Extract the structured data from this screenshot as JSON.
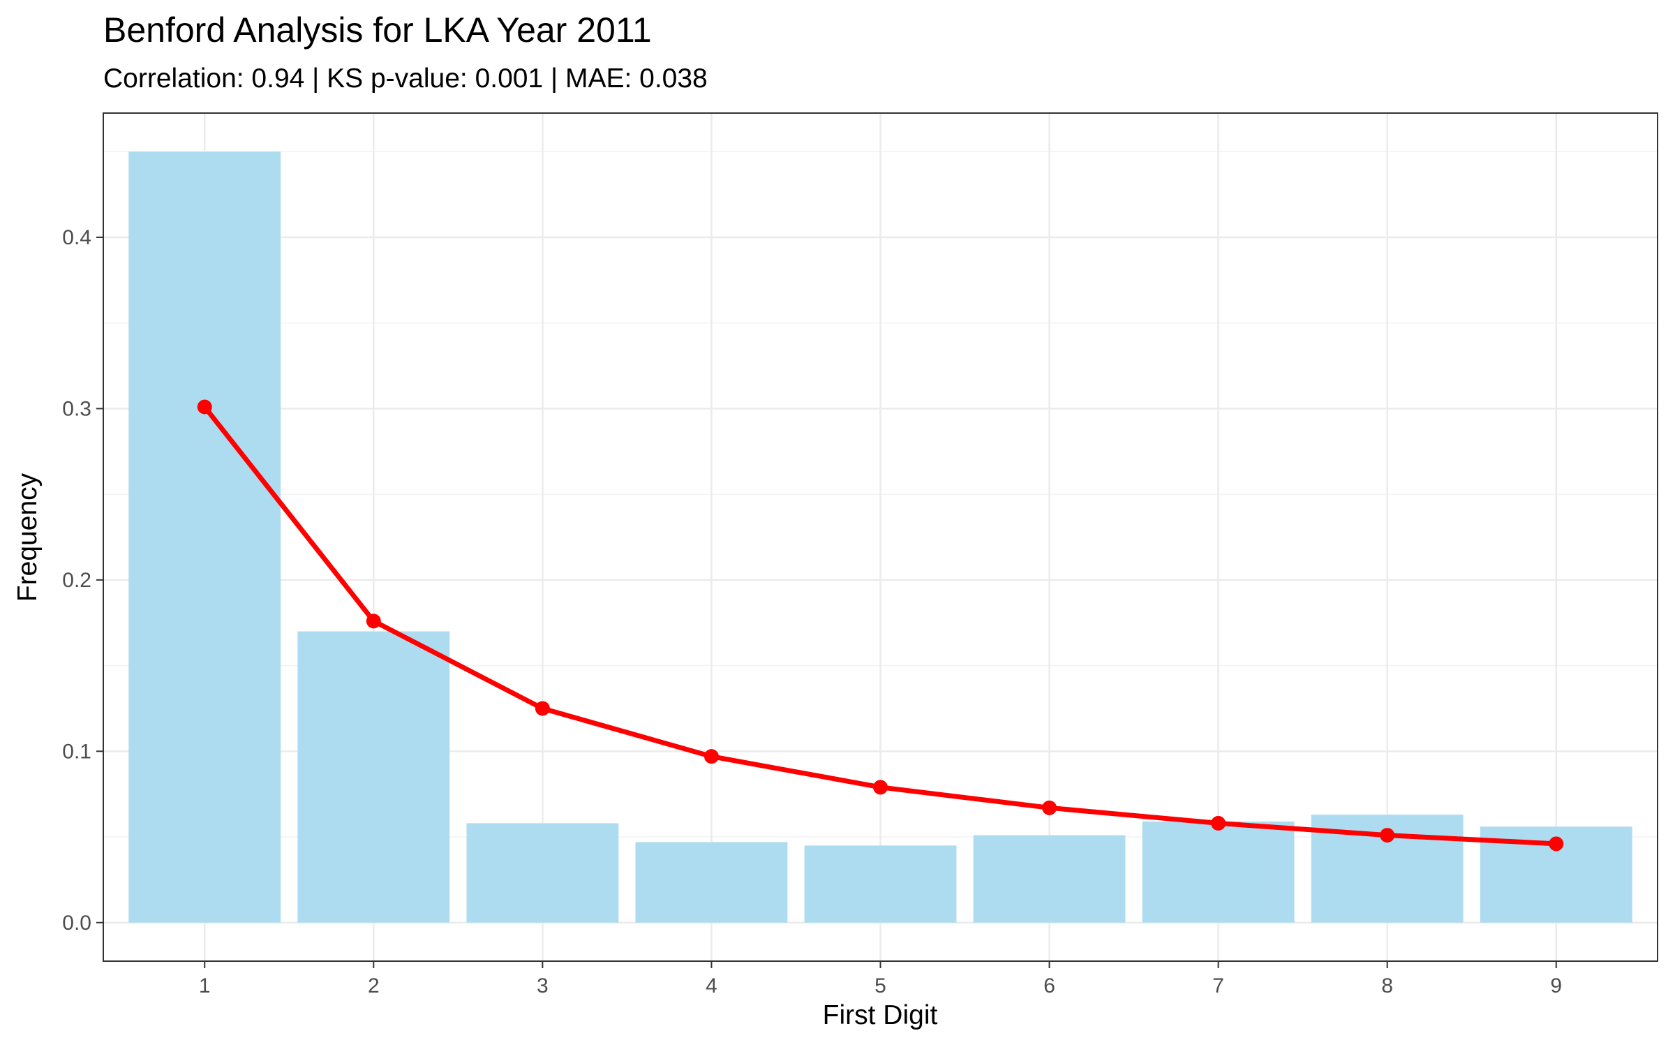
{
  "chart_data": {
    "type": "bar",
    "title": "Benford Analysis for LKA Year 2011",
    "subtitle": "Correlation: 0.94 | KS p-value: 0.001 | MAE: 0.038",
    "xlabel": "First Digit",
    "ylabel": "Frequency",
    "categories": [
      "1",
      "2",
      "3",
      "4",
      "5",
      "6",
      "7",
      "8",
      "9"
    ],
    "x_ticks": [
      "1",
      "2",
      "3",
      "4",
      "5",
      "6",
      "7",
      "8",
      "9"
    ],
    "y_ticks": [
      "0.0",
      "0.1",
      "0.2",
      "0.3",
      "0.4"
    ],
    "y_tick_values": [
      0.0,
      0.1,
      0.2,
      0.3,
      0.4
    ],
    "ylim": [
      -0.0225,
      0.4725
    ],
    "xlim": [
      0.4,
      9.6
    ],
    "grid": true,
    "series": [
      {
        "kind": "bar",
        "values": [
          0.45,
          0.17,
          0.058,
          0.047,
          0.045,
          0.051,
          0.059,
          0.063,
          0.056
        ],
        "color": "#ADDCF0"
      },
      {
        "kind": "line",
        "values": [
          0.301,
          0.176,
          0.125,
          0.097,
          0.079,
          0.067,
          0.058,
          0.051,
          0.046
        ],
        "color": "#FF0000"
      }
    ]
  }
}
